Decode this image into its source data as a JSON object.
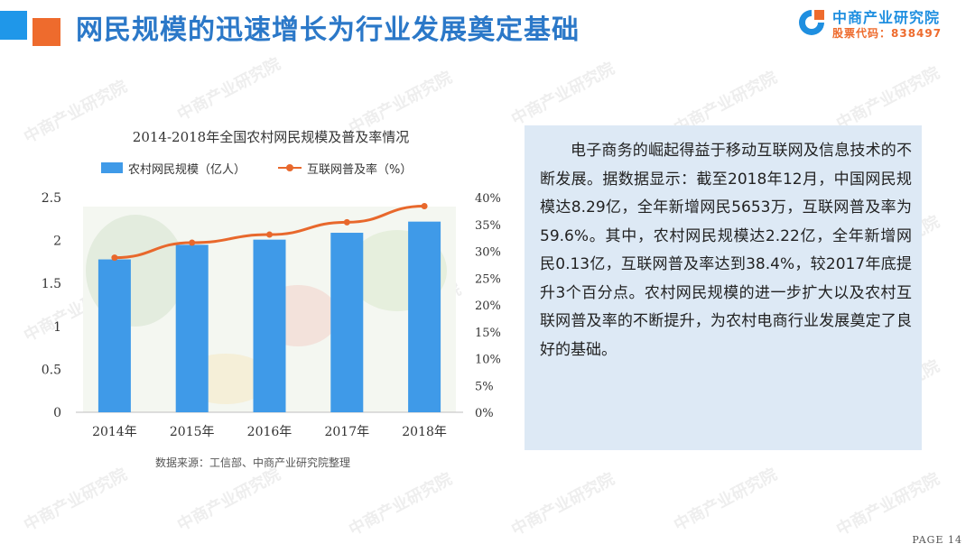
{
  "header": {
    "title": "网民规模的迅速增长为行业发展奠定基础",
    "logo_name": "中商产业研究院",
    "logo_code": "股票代码：838497"
  },
  "watermark_text": "中商产业研究院",
  "chart_data": {
    "type": "bar",
    "title": "2014-2018年全国农村网民规模及普及率情况",
    "categories": [
      "2014年",
      "2015年",
      "2016年",
      "2017年",
      "2018年"
    ],
    "series": [
      {
        "name": "农村网民规模（亿人）",
        "type": "bar",
        "axis": "left",
        "color": "#3f9ae8",
        "values": [
          1.78,
          1.95,
          2.01,
          2.09,
          2.22
        ]
      },
      {
        "name": "互联网普及率（%）",
        "type": "line",
        "axis": "right",
        "color": "#e8682c",
        "values": [
          28.8,
          31.6,
          33.1,
          35.4,
          38.4
        ]
      }
    ],
    "left_axis": {
      "ylim": [
        0,
        2.5
      ],
      "ticks": [
        "0",
        "0.5",
        "1",
        "1.5",
        "2",
        "2.5"
      ]
    },
    "right_axis": {
      "ylim": [
        0,
        40
      ],
      "ticks": [
        "0%",
        "5%",
        "10%",
        "15%",
        "20%",
        "25%",
        "30%",
        "35%",
        "40%"
      ]
    },
    "grid": false,
    "legend_position": "top"
  },
  "source_note": "数据来源：工信部、中商产业研究院整理",
  "panel_text": "电子商务的崛起得益于移动互联网及信息技术的不断发展。据数据显示：截至2018年12月，中国网民规模达8.29亿，全年新增网民5653万，互联网普及率为59.6%。其中，农村网民规模达2.22亿，全年新增网民0.13亿，互联网普及率达到38.4%，较2017年底提升3个百分点。农村网民规模的进一步扩大以及农村互联网普及率的不断提升，为农村电商行业发展奠定了良好的基础。",
  "page_label": "PAGE 14"
}
